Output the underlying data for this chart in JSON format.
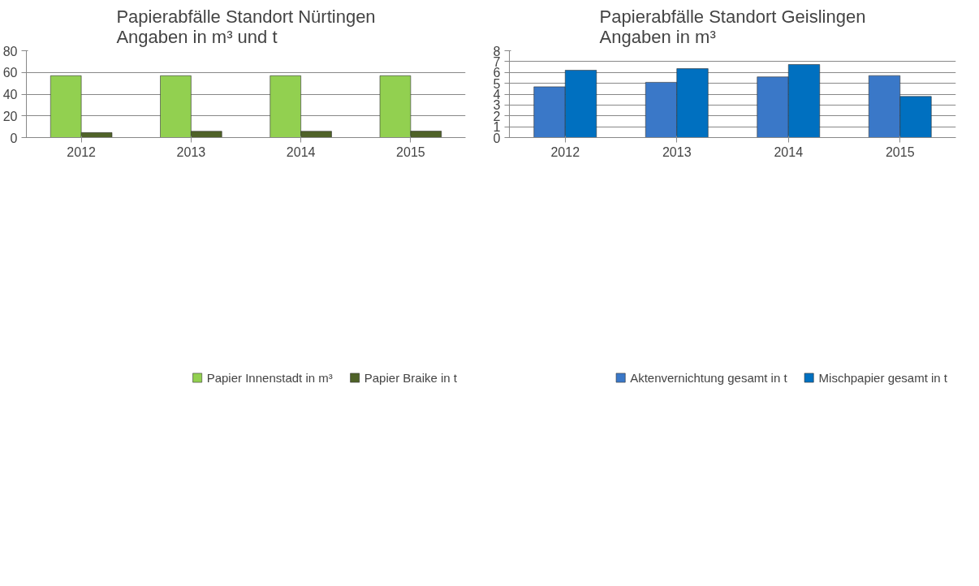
{
  "chart_data": [
    {
      "type": "bar",
      "title": "Papierabfälle Standort Nürtingen\nAngaben in m³ und  t",
      "categories": [
        "2012",
        "2013",
        "2014",
        "2015"
      ],
      "series": [
        {
          "name": "Papier Innenstadt in m³",
          "color": "#92d050",
          "values": [
            57,
            57,
            57,
            57
          ]
        },
        {
          "name": "Papier Braike in t",
          "color": "#4f6228",
          "values": [
            4.6,
            5.8,
            5.8,
            5.9
          ]
        }
      ],
      "ylim": [
        0,
        80
      ],
      "yticks": [
        0,
        20,
        40,
        60,
        80
      ],
      "grid": "y",
      "legend": "bottom"
    },
    {
      "type": "bar",
      "title": "Papierabfälle Standort Geislingen\nAngaben in m³",
      "categories": [
        "2012",
        "2013",
        "2014",
        "2015"
      ],
      "series": [
        {
          "name": "Aktenvernichtung gesamt in t",
          "color": "#3a78c8",
          "values": [
            4.68,
            5.09,
            5.59,
            5.71
          ]
        },
        {
          "name": "Mischpapier gesamt in t",
          "color": "#0070c0",
          "values": [
            6.2,
            6.35,
            6.73,
            3.79
          ]
        }
      ],
      "ylim": [
        0,
        8
      ],
      "yticks": [
        0,
        1,
        2,
        3,
        4,
        5,
        6,
        7,
        8
      ],
      "grid": "y",
      "legend": "bottom"
    }
  ]
}
